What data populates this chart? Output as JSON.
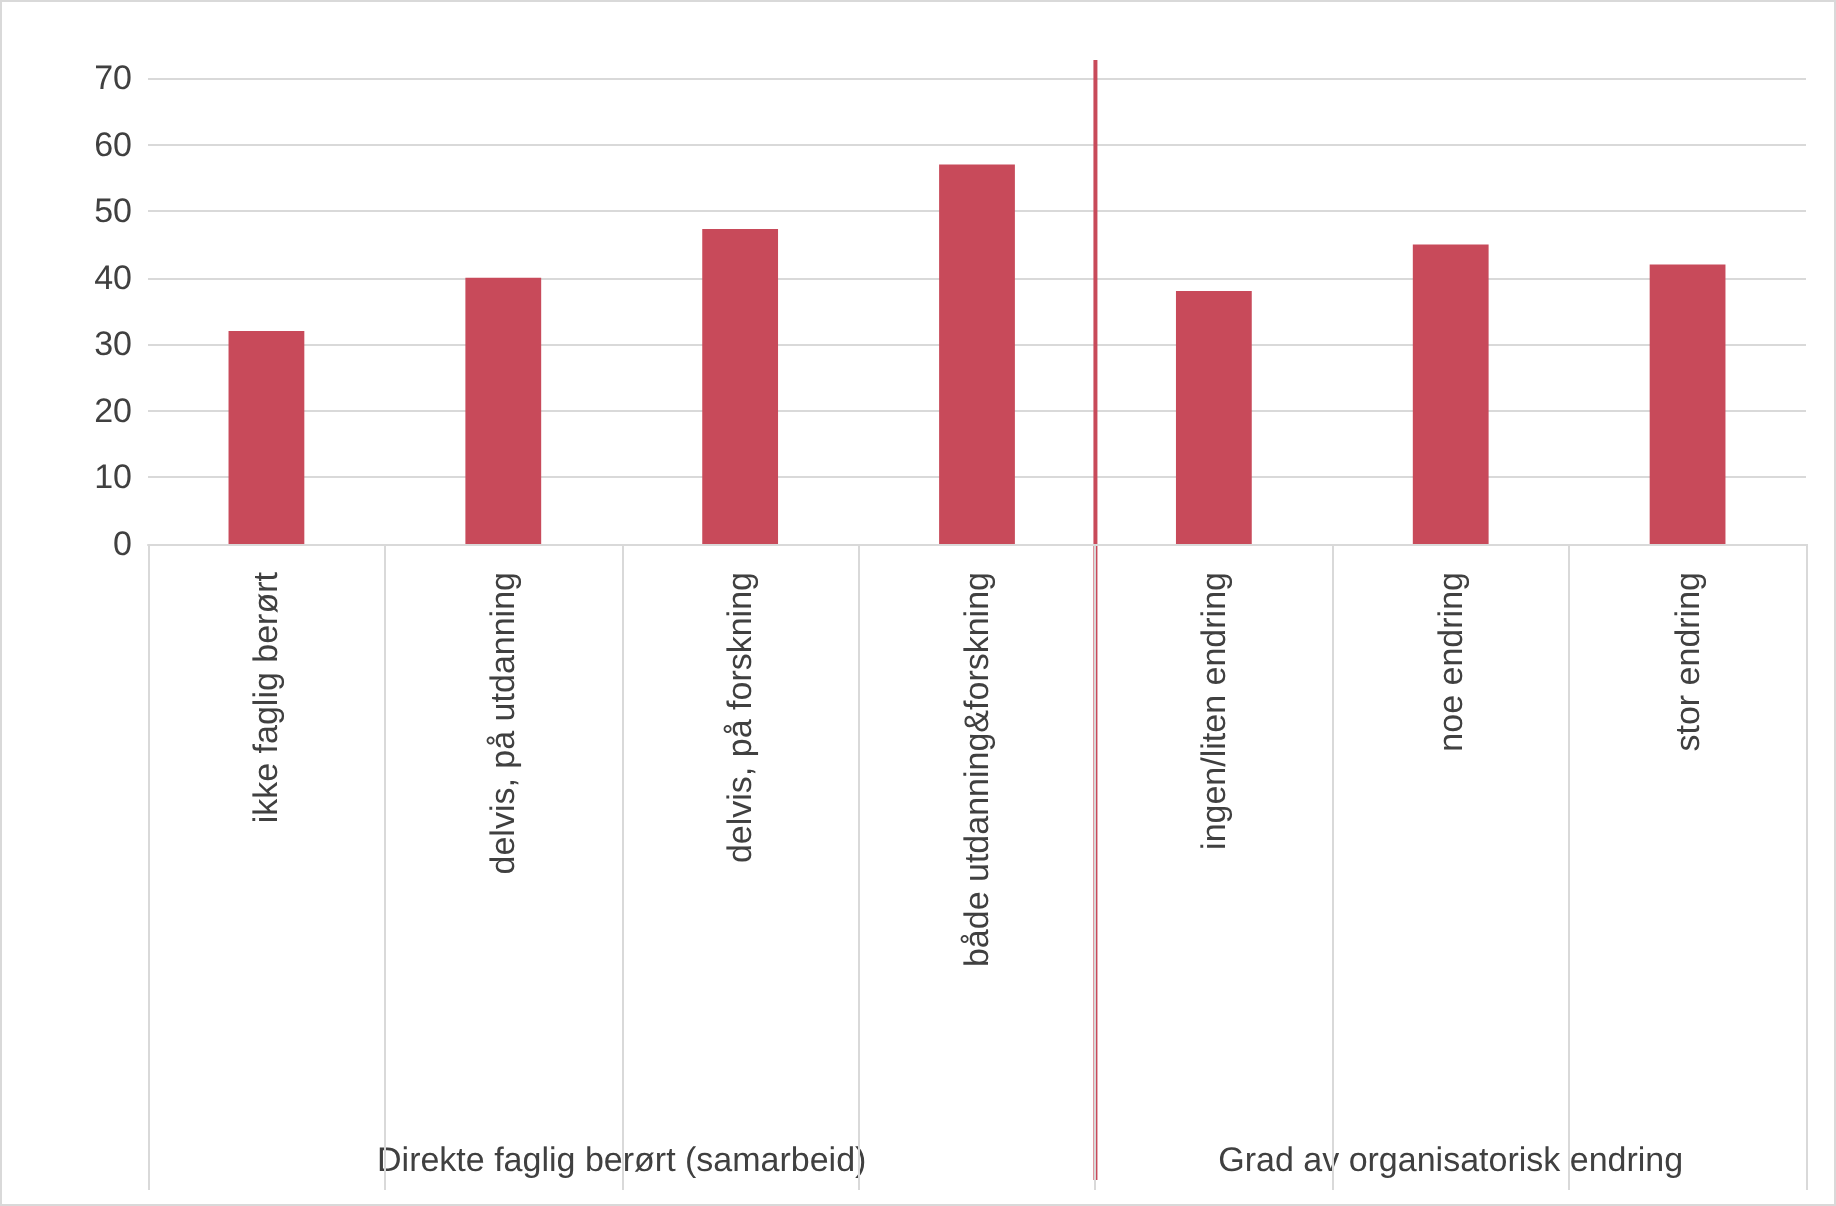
{
  "chart_data": {
    "type": "bar",
    "categories": [
      "ikke faglig berørt",
      "delvis, på utdanning",
      "delvis, på forskning",
      "både utdanning&forskning",
      "ingen/liten endring",
      "noe endring",
      "stor endring"
    ],
    "values": [
      32,
      40,
      47.3,
      57,
      38,
      45,
      42
    ],
    "color": "#c84a5a",
    "ylim": [
      0,
      70
    ],
    "yticks": [
      0,
      10,
      20,
      30,
      40,
      50,
      60,
      70
    ],
    "grid": "y",
    "ref_lines": [
      {
        "axis": "x",
        "value": "både utdanning&forskning",
        "color": "#c84a5a"
      }
    ],
    "annotations": [
      "Direkte faglig berørt (samarbeid)",
      "Grad av organisatorisk endring"
    ]
  }
}
